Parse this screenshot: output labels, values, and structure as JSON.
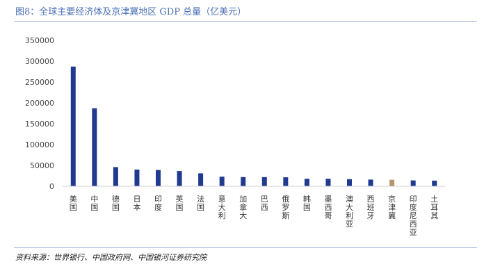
{
  "header": {
    "title": "图8：全球主要经济体及京津冀地区 GDP 总量（亿美元）"
  },
  "footer": {
    "source": "资料来源：世界银行、中国政府网、中国银河证券研究院"
  },
  "colors": {
    "bar": "#1f3a8f",
    "highlight": "#b5966a",
    "axis": "#d0d0d0",
    "title": "#4a6fb5",
    "rule": "#9fb3d9"
  },
  "chart_data": {
    "type": "bar",
    "title": "",
    "xlabel": "",
    "ylabel": "",
    "ylim": [
      0,
      350000
    ],
    "yticks": [
      0,
      50000,
      100000,
      150000,
      200000,
      250000,
      300000,
      350000
    ],
    "grid": false,
    "legend": "none",
    "categories": [
      "美国",
      "中国",
      "德国",
      "日本",
      "印度",
      "英国",
      "法国",
      "意大利",
      "加拿大",
      "巴西",
      "俄罗斯",
      "韩国",
      "墨西哥",
      "澳大利亚",
      "西班牙",
      "京津冀",
      "印度尼西亚",
      "土耳其"
    ],
    "values": [
      287000,
      187000,
      46000,
      40000,
      39000,
      36500,
      31000,
      23000,
      22000,
      22000,
      21500,
      18000,
      18000,
      17000,
      16000,
      15500,
      14000,
      13500
    ],
    "highlight_category": "京津冀"
  }
}
